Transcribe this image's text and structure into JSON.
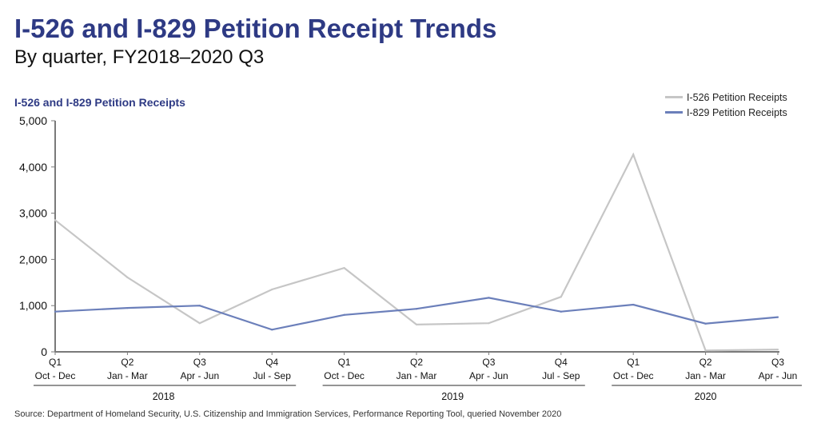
{
  "title": "I-526 and I-829 Petition Receipt Trends",
  "subtitle": "By quarter, FY2018–2020 Q3",
  "source": "Source: Department of Homeland Security, U.S. Citizenship and Immigration Services, Performance Reporting Tool, queried November 2020",
  "chart_data": {
    "type": "line",
    "title": "I-526 and I-829 Petition Receipt Trends",
    "subtitle": "By quarter, FY2018–2020 Q3",
    "ylabel": "I-526 and I-829 Petition Receipts",
    "xlabel": "",
    "ylim": [
      0,
      5000
    ],
    "yticks": [
      0,
      1000,
      2000,
      3000,
      4000,
      5000
    ],
    "ytick_labels": [
      "0",
      "1,000",
      "2,000",
      "3,000",
      "4,000",
      "5,000"
    ],
    "grid": false,
    "legend_position": "top-right",
    "categories": [
      {
        "quarter": "Q1",
        "months": "Oct - Dec",
        "year": "2018"
      },
      {
        "quarter": "Q2",
        "months": "Jan - Mar",
        "year": "2018"
      },
      {
        "quarter": "Q3",
        "months": "Apr - Jun",
        "year": "2018"
      },
      {
        "quarter": "Q4",
        "months": "Jul - Sep",
        "year": "2018"
      },
      {
        "quarter": "Q1",
        "months": "Oct - Dec",
        "year": "2019"
      },
      {
        "quarter": "Q2",
        "months": "Jan - Mar",
        "year": "2019"
      },
      {
        "quarter": "Q3",
        "months": "Apr - Jun",
        "year": "2019"
      },
      {
        "quarter": "Q4",
        "months": "Jul - Sep",
        "year": "2019"
      },
      {
        "quarter": "Q1",
        "months": "Oct - Dec",
        "year": "2020"
      },
      {
        "quarter": "Q2",
        "months": "Jan - Mar",
        "year": "2020"
      },
      {
        "quarter": "Q3",
        "months": "Apr - Jun",
        "year": "2020"
      }
    ],
    "year_groups": [
      {
        "label": "2018",
        "start": 0,
        "end": 3
      },
      {
        "label": "2019",
        "start": 4,
        "end": 7
      },
      {
        "label": "2020",
        "start": 8,
        "end": 10
      }
    ],
    "series": [
      {
        "name": "I-526 Petition Receipts",
        "color": "#c6c6c6",
        "values": [
          2850,
          1610,
          620,
          1350,
          1815,
          590,
          620,
          1190,
          4270,
          30,
          50
        ]
      },
      {
        "name": "I-829 Petition Receipts",
        "color": "#6b7fba",
        "values": [
          870,
          950,
          1000,
          480,
          800,
          930,
          1170,
          870,
          1020,
          610,
          750
        ]
      }
    ]
  }
}
